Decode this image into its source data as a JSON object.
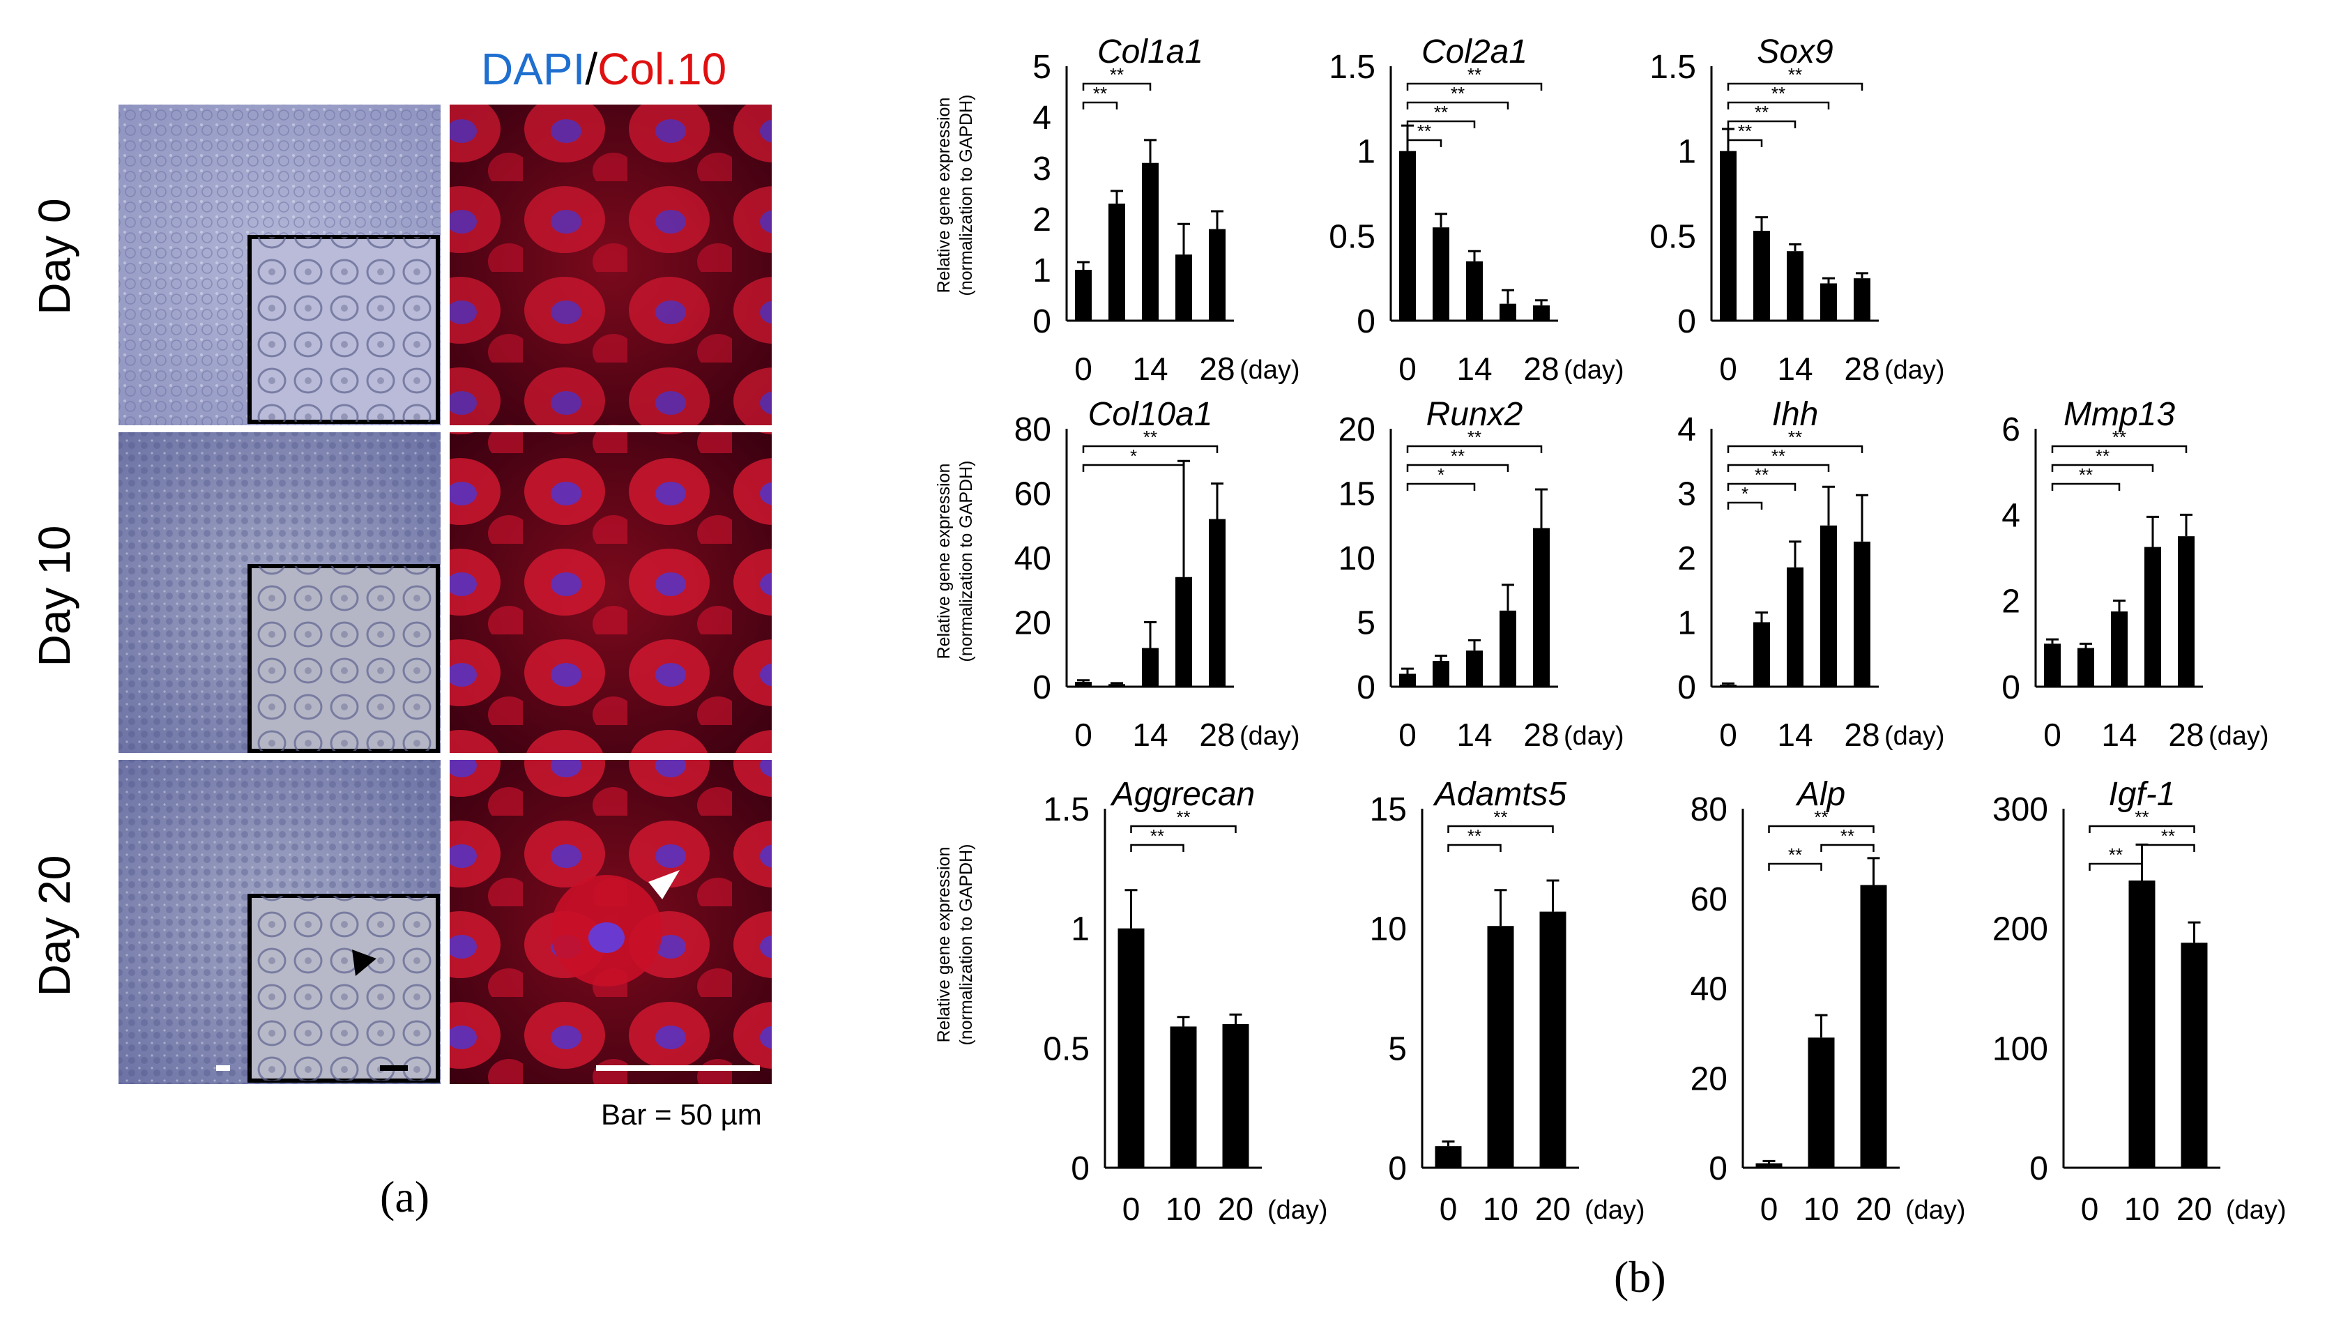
{
  "panel_a": {
    "header_dapi": "DAPI",
    "header_sep": "/",
    "header_col10": "Col.10",
    "rows": [
      {
        "label": "Day 0"
      },
      {
        "label": "Day 10"
      },
      {
        "label": "Day 20"
      }
    ],
    "scale_bar_label": "Bar = 50 µm",
    "panel_label": "(a)",
    "colors": {
      "dapi": "#1f6fd1",
      "col10": "#e01010",
      "brightfield": "#9aa0c8",
      "fluor_bg": "#4a0010"
    }
  },
  "panel_b": {
    "panel_label": "(b)",
    "ylabel_line1": "Relative gene expression",
    "ylabel_line2": "(normalization to GAPDH)",
    "day_unit": "(day)"
  },
  "chart_data": [
    {
      "type": "bar",
      "title": "Col1a1",
      "categories": [
        "0",
        "7",
        "14",
        "21",
        "28"
      ],
      "tick_labels": [
        "0",
        "14",
        "28"
      ],
      "xunit": "(day)",
      "values": [
        1.0,
        2.3,
        3.1,
        1.3,
        1.8
      ],
      "errors": [
        0.15,
        0.25,
        0.45,
        0.6,
        0.35
      ],
      "ylim": [
        0,
        5
      ],
      "yticks": [
        "0",
        "1",
        "2",
        "3",
        "4",
        "5"
      ],
      "significance": [
        {
          "from": "0",
          "to": "7",
          "label": "**"
        },
        {
          "from": "0",
          "to": "14",
          "label": "**"
        }
      ]
    },
    {
      "type": "bar",
      "title": "Col2a1",
      "categories": [
        "0",
        "7",
        "14",
        "21",
        "28"
      ],
      "tick_labels": [
        "0",
        "14",
        "28"
      ],
      "xunit": "(day)",
      "values": [
        1.0,
        0.55,
        0.35,
        0.1,
        0.09
      ],
      "errors": [
        0.15,
        0.08,
        0.06,
        0.08,
        0.03
      ],
      "ylim": [
        0,
        1.5
      ],
      "yticks": [
        "0",
        "0.5",
        "1",
        "1.5"
      ],
      "significance": [
        {
          "from": "0",
          "to": "7",
          "label": "**"
        },
        {
          "from": "0",
          "to": "14",
          "label": "**"
        },
        {
          "from": "0",
          "to": "21",
          "label": "**"
        },
        {
          "from": "0",
          "to": "28",
          "label": "**"
        }
      ]
    },
    {
      "type": "bar",
      "title": "Sox9",
      "categories": [
        "0",
        "7",
        "14",
        "21",
        "28"
      ],
      "tick_labels": [
        "0",
        "14",
        "28"
      ],
      "xunit": "(day)",
      "values": [
        1.0,
        0.53,
        0.41,
        0.22,
        0.25
      ],
      "errors": [
        0.13,
        0.08,
        0.04,
        0.03,
        0.03
      ],
      "ylim": [
        0,
        1.5
      ],
      "yticks": [
        "0",
        "0.5",
        "1",
        "1.5"
      ],
      "significance": [
        {
          "from": "0",
          "to": "7",
          "label": "**"
        },
        {
          "from": "0",
          "to": "14",
          "label": "**"
        },
        {
          "from": "0",
          "to": "21",
          "label": "**"
        },
        {
          "from": "0",
          "to": "28",
          "label": "**"
        }
      ]
    },
    {
      "type": "bar",
      "title": "Col10a1",
      "categories": [
        "0",
        "7",
        "14",
        "21",
        "28"
      ],
      "tick_labels": [
        "0",
        "14",
        "28"
      ],
      "xunit": "(day)",
      "values": [
        1.5,
        0.8,
        12,
        34,
        52
      ],
      "errors": [
        0.5,
        0.3,
        8,
        36,
        11
      ],
      "ylim": [
        0,
        80
      ],
      "yticks": [
        "0",
        "20",
        "40",
        "60",
        "80"
      ],
      "significance": [
        {
          "from": "0",
          "to": "21",
          "label": "*"
        },
        {
          "from": "0",
          "to": "28",
          "label": "**"
        }
      ]
    },
    {
      "type": "bar",
      "title": "Runx2",
      "categories": [
        "0",
        "7",
        "14",
        "21",
        "28"
      ],
      "tick_labels": [
        "0",
        "14",
        "28"
      ],
      "xunit": "(day)",
      "values": [
        1.0,
        2.0,
        2.8,
        5.9,
        12.3
      ],
      "errors": [
        0.4,
        0.4,
        0.8,
        2.0,
        3.0
      ],
      "ylim": [
        0,
        20
      ],
      "yticks": [
        "0",
        "5",
        "10",
        "15",
        "20"
      ],
      "significance": [
        {
          "from": "0",
          "to": "14",
          "label": "*"
        },
        {
          "from": "0",
          "to": "21",
          "label": "**"
        },
        {
          "from": "0",
          "to": "28",
          "label": "**"
        }
      ]
    },
    {
      "type": "bar",
      "title": "Ihh",
      "categories": [
        "0",
        "7",
        "14",
        "21",
        "28"
      ],
      "tick_labels": [
        "0",
        "14",
        "28"
      ],
      "xunit": "(day)",
      "values": [
        0.03,
        1.0,
        1.85,
        2.5,
        2.25
      ],
      "errors": [
        0.02,
        0.15,
        0.4,
        0.6,
        0.72
      ],
      "ylim": [
        0,
        4
      ],
      "yticks": [
        "0",
        "1",
        "2",
        "3",
        "4"
      ],
      "significance": [
        {
          "from": "0",
          "to": "7",
          "label": "*"
        },
        {
          "from": "0",
          "to": "14",
          "label": "**"
        },
        {
          "from": "0",
          "to": "21",
          "label": "**"
        },
        {
          "from": "0",
          "to": "28",
          "label": "**"
        }
      ]
    },
    {
      "type": "bar",
      "title": "Mmp13",
      "categories": [
        "0",
        "7",
        "14",
        "21",
        "28"
      ],
      "tick_labels": [
        "0",
        "14",
        "28"
      ],
      "xunit": "(day)",
      "values": [
        1.0,
        0.9,
        1.75,
        3.25,
        3.5
      ],
      "errors": [
        0.1,
        0.1,
        0.25,
        0.7,
        0.5
      ],
      "ylim": [
        0,
        6
      ],
      "yticks": [
        "0",
        "2",
        "4",
        "6"
      ],
      "significance": [
        {
          "from": "0",
          "to": "14",
          "label": "**"
        },
        {
          "from": "0",
          "to": "21",
          "label": "**"
        },
        {
          "from": "0",
          "to": "28",
          "label": "**"
        }
      ]
    },
    {
      "type": "bar",
      "title": "Aggrecan",
      "categories": [
        "0",
        "10",
        "20"
      ],
      "tick_labels": [
        "0",
        "10",
        "20"
      ],
      "xunit": "(day)",
      "values": [
        1.0,
        0.59,
        0.6
      ],
      "errors": [
        0.16,
        0.04,
        0.04
      ],
      "ylim": [
        0,
        1.5
      ],
      "yticks": [
        "0",
        "0.5",
        "1",
        "1.5"
      ],
      "significance": [
        {
          "from": "0",
          "to": "10",
          "label": "**"
        },
        {
          "from": "0",
          "to": "20",
          "label": "**"
        }
      ]
    },
    {
      "type": "bar",
      "title": "Adamts5",
      "categories": [
        "0",
        "10",
        "20"
      ],
      "tick_labels": [
        "0",
        "10",
        "20"
      ],
      "xunit": "(day)",
      "values": [
        0.9,
        10.1,
        10.7
      ],
      "errors": [
        0.2,
        1.5,
        1.3
      ],
      "ylim": [
        0,
        15
      ],
      "yticks": [
        "0",
        "5",
        "10",
        "15"
      ],
      "significance": [
        {
          "from": "0",
          "to": "10",
          "label": "**"
        },
        {
          "from": "0",
          "to": "20",
          "label": "**"
        }
      ]
    },
    {
      "type": "bar",
      "title": "Alp",
      "categories": [
        "0",
        "10",
        "20"
      ],
      "tick_labels": [
        "0",
        "10",
        "20"
      ],
      "xunit": "(day)",
      "values": [
        1.0,
        29,
        63
      ],
      "errors": [
        0.5,
        5,
        6
      ],
      "ylim": [
        0,
        80
      ],
      "yticks": [
        "0",
        "20",
        "40",
        "60",
        "80"
      ],
      "significance": [
        {
          "from": "0",
          "to": "10",
          "label": "**"
        },
        {
          "from": "10",
          "to": "20",
          "label": "**"
        },
        {
          "from": "0",
          "to": "20",
          "label": "**"
        }
      ]
    },
    {
      "type": "bar",
      "title": "Igf-1",
      "categories": [
        "0",
        "10",
        "20"
      ],
      "tick_labels": [
        "0",
        "10",
        "20"
      ],
      "xunit": "(day)",
      "values": [
        0,
        240,
        188
      ],
      "errors": [
        0,
        30,
        17
      ],
      "ylim": [
        0,
        300
      ],
      "yticks": [
        "0",
        "100",
        "200",
        "300"
      ],
      "significance": [
        {
          "from": "0",
          "to": "10",
          "label": "**"
        },
        {
          "from": "10",
          "to": "20",
          "label": "**"
        },
        {
          "from": "0",
          "to": "20",
          "label": "**"
        }
      ]
    }
  ]
}
